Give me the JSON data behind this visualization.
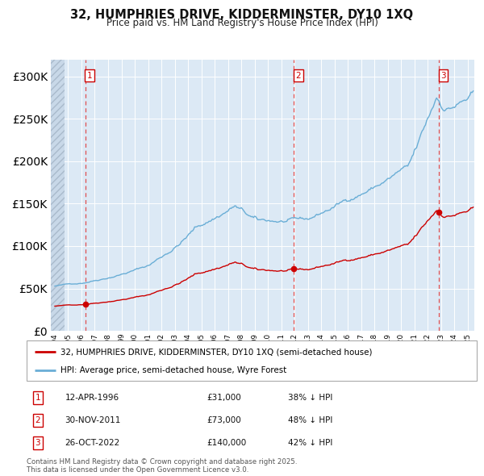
{
  "title1": "32, HUMPHRIES DRIVE, KIDDERMINSTER, DY10 1XQ",
  "title2": "Price paid vs. HM Land Registry's House Price Index (HPI)",
  "legend_line1": "32, HUMPHRIES DRIVE, KIDDERMINSTER, DY10 1XQ (semi-detached house)",
  "legend_line2": "HPI: Average price, semi-detached house, Wyre Forest",
  "transactions": [
    {
      "num": 1,
      "date_label": "12-APR-1996",
      "price": 31000,
      "pct": "38% ↓ HPI",
      "date_x": 1996.28
    },
    {
      "num": 2,
      "date_label": "30-NOV-2011",
      "price": 73000,
      "pct": "48% ↓ HPI",
      "date_x": 2011.92
    },
    {
      "num": 3,
      "date_label": "26-OCT-2022",
      "price": 140000,
      "pct": "42% ↓ HPI",
      "date_x": 2022.82
    }
  ],
  "ylim": [
    0,
    320000
  ],
  "xlim_start": 1993.7,
  "xlim_end": 2025.5,
  "hpi_color": "#6aaed6",
  "price_color": "#cc0000",
  "background_color": "#dce9f5",
  "grid_color": "#ffffff",
  "marker_color": "#cc0000",
  "dashed_color": "#e05050",
  "hatch_end": 1994.75,
  "footnote": "Contains HM Land Registry data © Crown copyright and database right 2025.\nThis data is licensed under the Open Government Licence v3.0."
}
